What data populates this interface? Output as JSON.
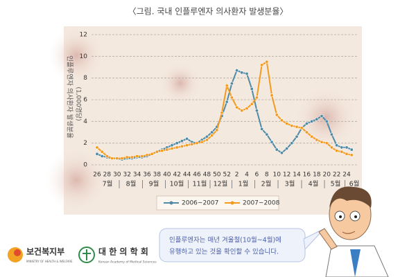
{
  "chart_data": {
    "type": "line",
    "title": "〈그림. 국내 인플루엔자 의사환자 발생분율〉",
    "y_label": "인플루엔자 의사환자 발생분율",
    "y_unit": "(1,000명당)",
    "categories": [
      "26",
      null,
      "28",
      null,
      "30",
      null,
      "32",
      null,
      "34",
      null,
      "36",
      null,
      "38",
      null,
      "40",
      null,
      "42",
      null,
      "44",
      null,
      "46",
      null,
      "48",
      null,
      "50",
      null,
      "52",
      null,
      "2",
      null,
      "4",
      null,
      "6",
      null,
      "8",
      null,
      "10",
      null,
      "12",
      null,
      "14",
      null,
      "16",
      null,
      "18",
      null,
      "20",
      null,
      "22",
      null,
      "24",
      null
    ],
    "months": [
      "7월",
      "8월",
      "9월",
      "10월",
      "11월",
      "12월",
      "1월",
      "2월",
      "3월",
      "4월",
      "5월",
      "6월"
    ],
    "series": [
      {
        "name": "2006~2007",
        "color": "#4f8aa6",
        "values": [
          1.0,
          0.8,
          0.7,
          0.6,
          0.6,
          0.5,
          0.6,
          0.6,
          0.7,
          0.7,
          0.8,
          1.0,
          1.2,
          1.4,
          1.6,
          1.8,
          2.0,
          2.2,
          2.4,
          2.1,
          2.0,
          2.3,
          2.6,
          3.0,
          3.5,
          4.5,
          5.8,
          7.5,
          8.7,
          8.5,
          8.4,
          7.0,
          5.0,
          3.3,
          2.8,
          2.1,
          1.4,
          1.1,
          1.5,
          2.0,
          2.6,
          3.4,
          3.8,
          4.0,
          4.2,
          4.5,
          4.0,
          2.8,
          1.8,
          1.6,
          1.6,
          1.4
        ]
      },
      {
        "name": "2007~2008",
        "color": "#f49a1f",
        "values": [
          1.6,
          1.2,
          0.8,
          0.6,
          0.6,
          0.6,
          0.7,
          0.7,
          0.8,
          0.8,
          0.9,
          1.0,
          1.2,
          1.3,
          1.4,
          1.5,
          1.6,
          1.7,
          1.8,
          1.9,
          2.0,
          2.1,
          2.3,
          2.7,
          3.2,
          4.8,
          7.3,
          6.2,
          5.3,
          5.0,
          5.2,
          5.6,
          6.2,
          9.2,
          9.5,
          6.4,
          4.6,
          4.1,
          3.8,
          3.6,
          3.5,
          3.4,
          3.0,
          2.6,
          2.3,
          2.1,
          2.0,
          1.6,
          1.3,
          1.2,
          1.0,
          0.9
        ]
      }
    ],
    "ylim": [
      0,
      12
    ],
    "yticks": [
      0,
      2,
      4,
      6,
      8,
      10,
      12
    ],
    "grid": true,
    "bubble": [
      "인플루엔자는 매년 겨울철(10월~4월)에",
      "유행하고 있는 것을 확인할 수 있습니다."
    ],
    "logos": [
      {
        "name": "보건복지부",
        "sub": "MINISTRY OF HEALTH & WELFARE"
      },
      {
        "name": "대 한 의 학 회",
        "sub": "Korean Academy of Medical Sciences"
      }
    ]
  }
}
